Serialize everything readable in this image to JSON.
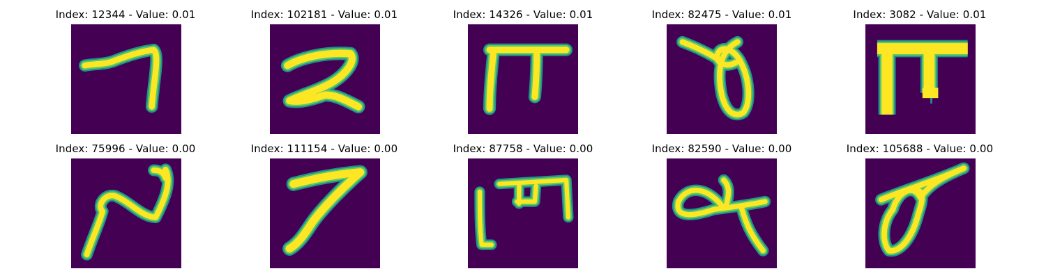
{
  "colors": {
    "background": "#440154",
    "stroke_core": "#fde725",
    "stroke_edge_inner": "#5ec962",
    "stroke_edge_outer": "#21918c"
  },
  "panels": [
    {
      "title": "Index: 12344 - Value: 0.01"
    },
    {
      "title": "Index: 102181 - Value: 0.01"
    },
    {
      "title": "Index: 14326 - Value: 0.01"
    },
    {
      "title": "Index: 82475 - Value: 0.01"
    },
    {
      "title": "Index: 3082 - Value: 0.01"
    },
    {
      "title": "Index: 75996 - Value: 0.00"
    },
    {
      "title": "Index: 111154 - Value: 0.00"
    },
    {
      "title": "Index: 87758 - Value: 0.00"
    },
    {
      "title": "Index: 82590 - Value: 0.00"
    },
    {
      "title": "Index: 105688 - Value: 0.00"
    }
  ]
}
